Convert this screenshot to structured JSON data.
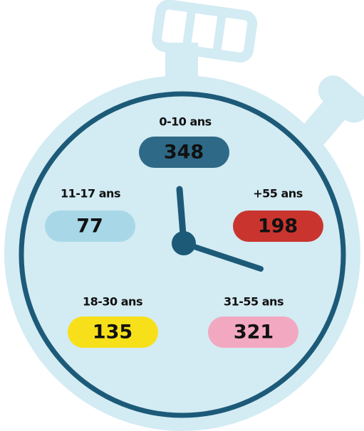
{
  "items": [
    {
      "label": "0-10 ans",
      "value": 348
    },
    {
      "label": "11-17 ans",
      "value": 77
    },
    {
      "label": "+55 ans",
      "value": 198
    },
    {
      "label": "18-30 ans",
      "value": 135
    },
    {
      "label": "31-55 ans",
      "value": 321
    }
  ]
}
